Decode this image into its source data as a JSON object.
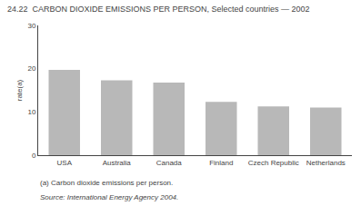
{
  "chart_data": {
    "type": "bar",
    "title": "24.22  CARBON DIOXIDE EMISSIONS PER PERSON, Selected countries — 2002",
    "ylabel": "rate(a)",
    "categories": [
      "USA",
      "Australia",
      "Canada",
      "Finland",
      "Czech Republic",
      "Netherlands"
    ],
    "values": [
      19.7,
      17.3,
      16.8,
      12.3,
      11.3,
      11.0
    ],
    "color": "#b8b8b8",
    "ylim": [
      0,
      30
    ],
    "yticks": [
      0,
      10,
      20,
      30
    ],
    "grid": false,
    "annotations": [
      "(a) Carbon dioxide emissions per person.",
      "Source: International Energy Agency 2004."
    ]
  }
}
